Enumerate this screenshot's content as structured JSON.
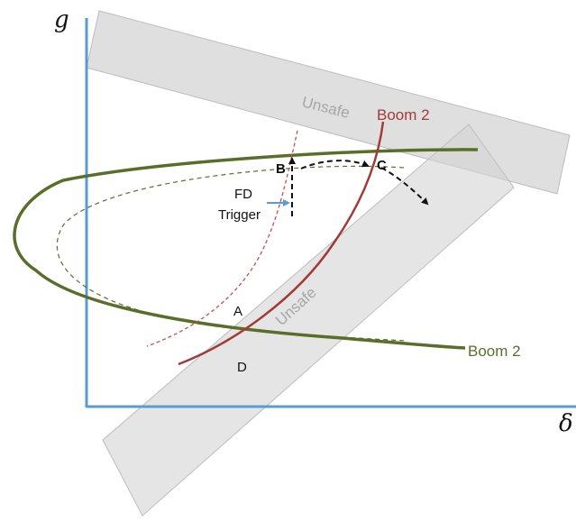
{
  "axes": {
    "y_label": "g",
    "x_label": "δ"
  },
  "labels": {
    "unsafe_top": "Unsafe",
    "unsafe_diag": "Unsafe",
    "boom2_red": "Boom 2",
    "boom2_green": "Boom 2",
    "point_a": "A",
    "point_b": "B",
    "point_c": "C",
    "point_d": "D",
    "fd_line1": "FD",
    "fd_line2": "Trigger"
  },
  "colors": {
    "axis": "#5b9bd5",
    "green": "#5a6e2b",
    "red": "#a33a3a",
    "band": "#d7d7d7",
    "band_stroke": "#bdbdbd",
    "band_text": "#a6a6a6",
    "arrow": "#111111",
    "fd_arrow": "#5b9bd5"
  }
}
